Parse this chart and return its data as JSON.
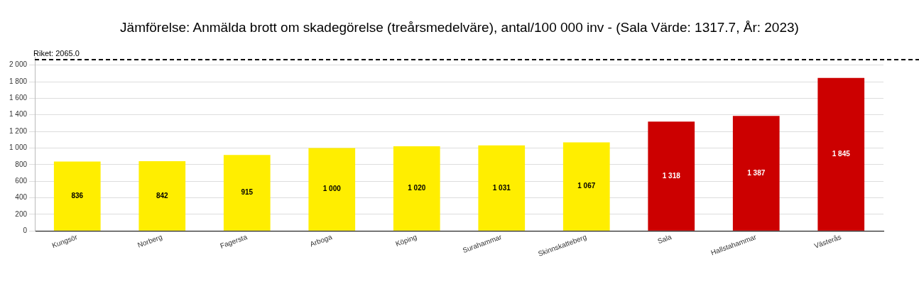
{
  "chart_data": {
    "type": "bar",
    "title": "Jämförelse: Anmälda brott om skadegörelse (treårsmedelväre), antal/100 000 inv - (Sala Värde: 1317.7, År: 2023)",
    "categories": [
      "Kungsör",
      "Norberg",
      "Fagersta",
      "Arboga",
      "Köping",
      "Surahammar",
      "Skinnskatteberg",
      "Sala",
      "Hallstahammar",
      "Västerås"
    ],
    "values": [
      836,
      842,
      915,
      1000,
      1020,
      1031,
      1067,
      1318,
      1387,
      1845
    ],
    "colors": [
      "#ffee00",
      "#ffee00",
      "#ffee00",
      "#ffee00",
      "#ffee00",
      "#ffee00",
      "#ffee00",
      "#cc0000",
      "#cc0000",
      "#cc0000"
    ],
    "value_labels": [
      "836",
      "842",
      "915",
      "1 000",
      "1 020",
      "1 031",
      "1 067",
      "1 318",
      "1 387",
      "1 845"
    ],
    "ylim": [
      0,
      2100
    ],
    "yticks": [
      0,
      200,
      400,
      600,
      800,
      {
        "value": 1000,
        "label": "1 000"
      },
      {
        "value": 1200,
        "label": "1 200"
      },
      {
        "value": 1400,
        "label": "1 400"
      },
      {
        "value": 1600,
        "label": "1 600"
      },
      {
        "value": 1800,
        "label": "1 800"
      },
      {
        "value": 2000,
        "label": "2 000"
      }
    ],
    "grid": "y",
    "legend": false,
    "ref_lines": [
      {
        "axis": "y",
        "value": 2065,
        "label": "Riket: 2065.0",
        "color": "#000000",
        "line_style": "dashed"
      }
    ]
  }
}
